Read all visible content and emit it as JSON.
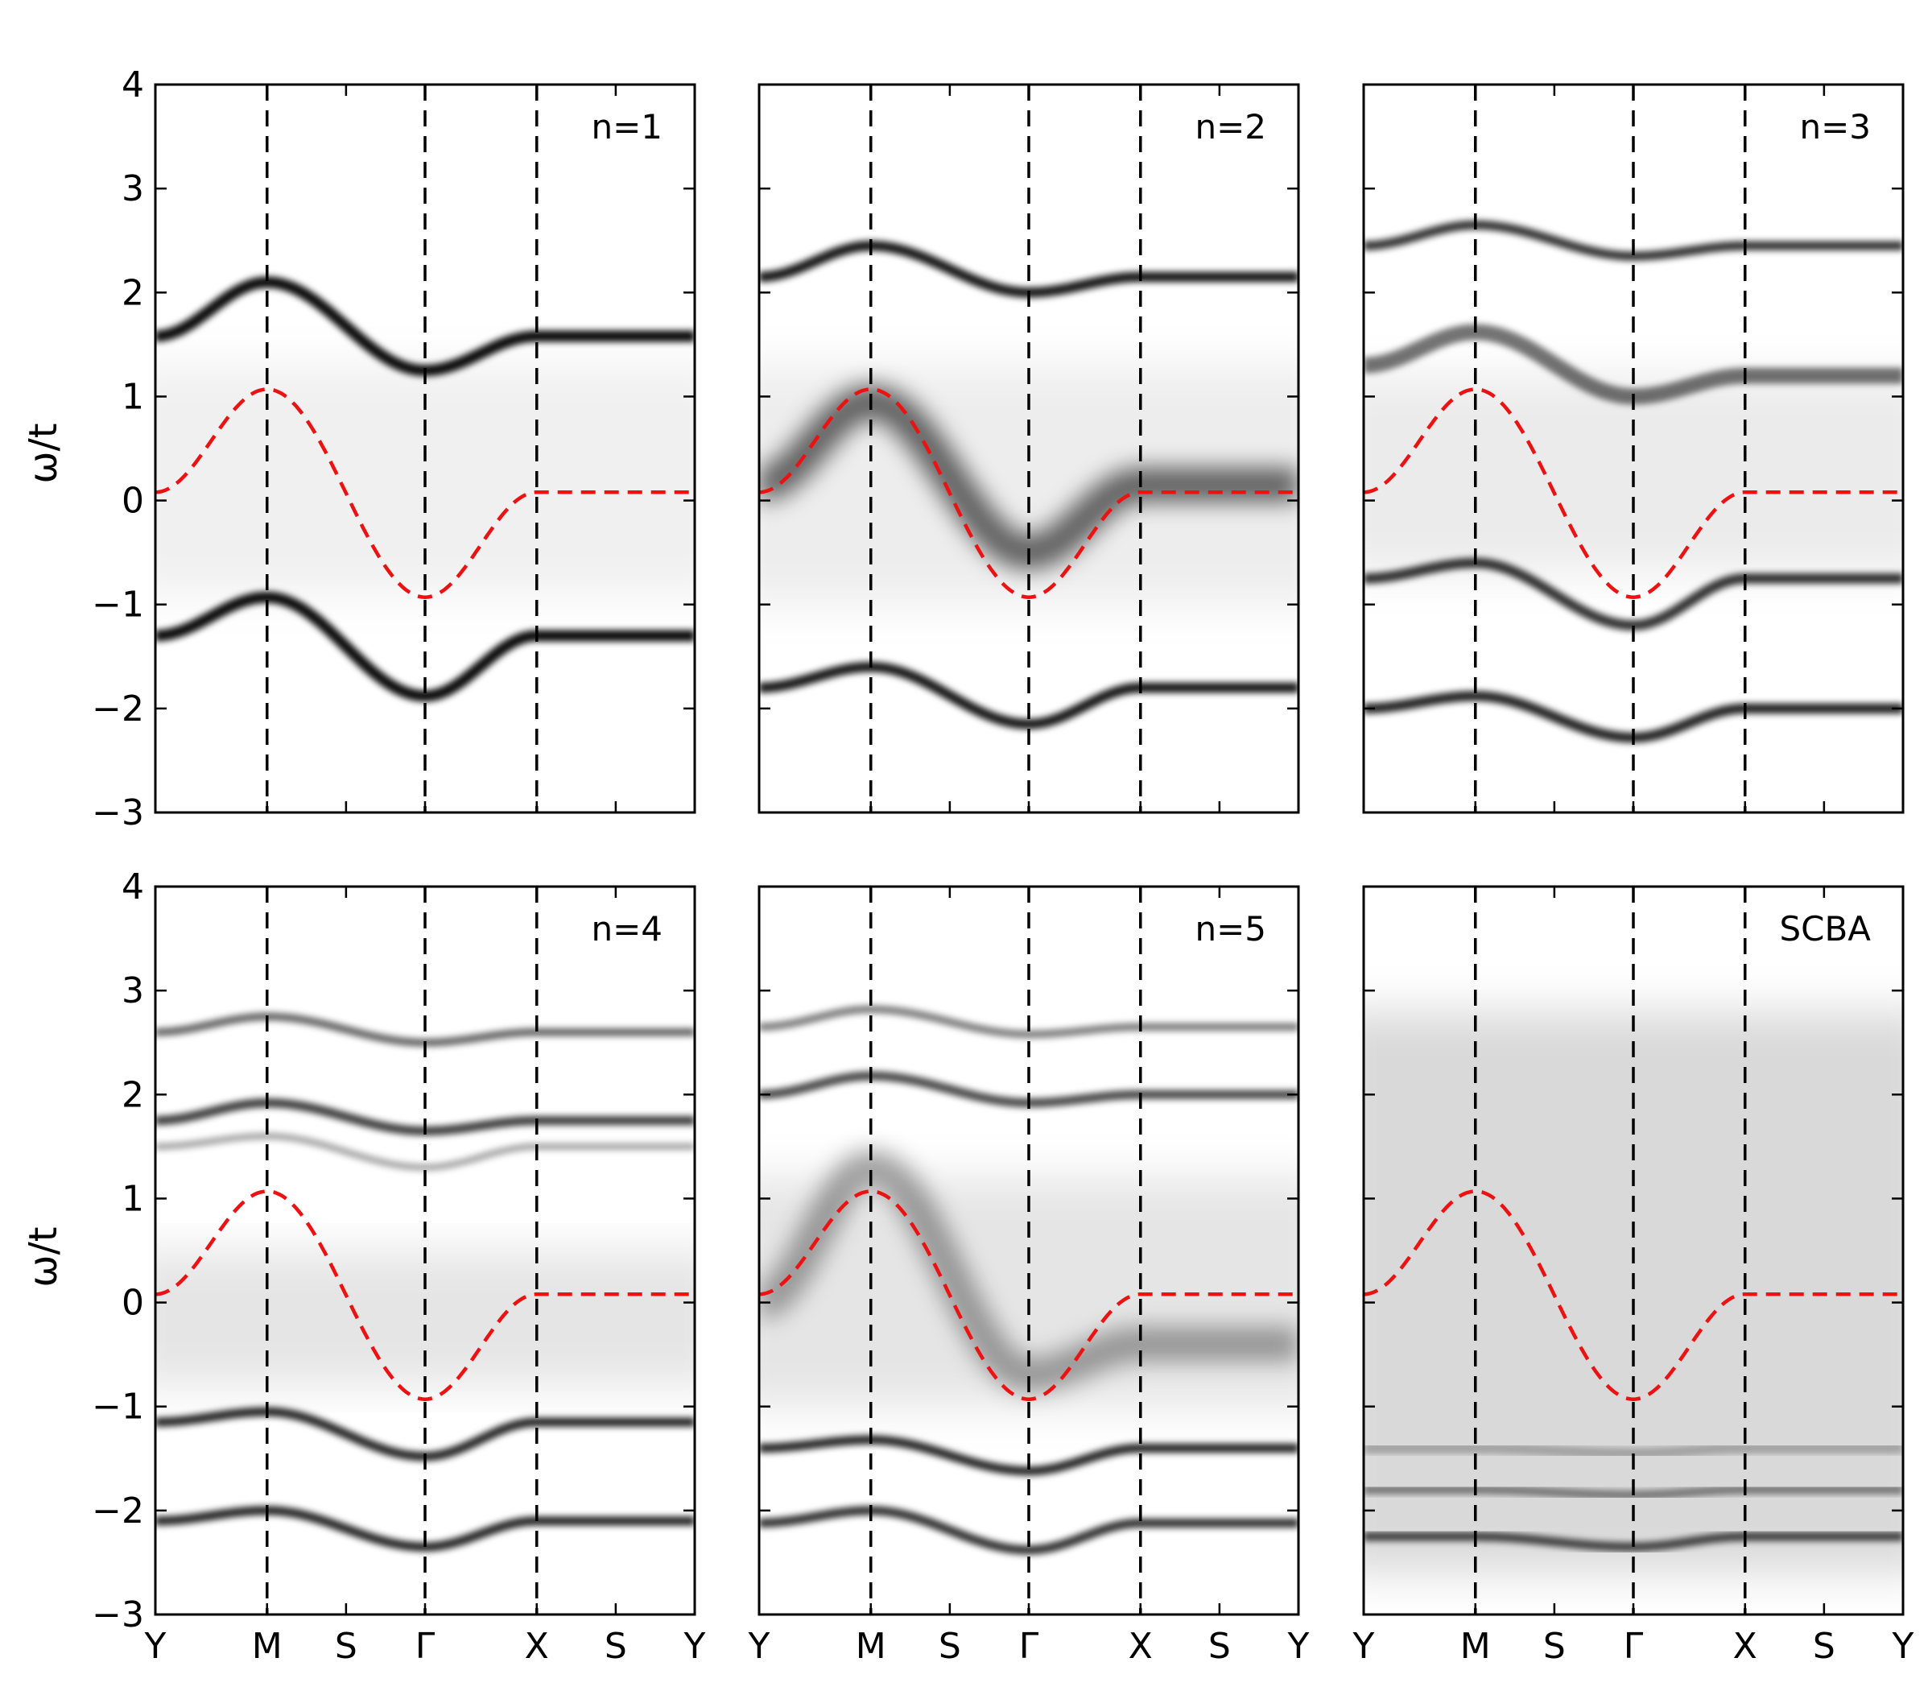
{
  "chart_data": {
    "type": "heatmap",
    "description_kind": "spectral function intensity map (grayscale) with bare dispersion overlay",
    "ylabel": "ω/t",
    "ylim": [
      -3,
      4
    ],
    "yticks": [
      4,
      3,
      2,
      1,
      0,
      -1,
      -2,
      -3
    ],
    "ytick_labels": [
      "4",
      "3",
      "2",
      "1",
      "0",
      "−1",
      "−2",
      "−3"
    ],
    "kpath": {
      "labels": [
        "Y",
        "M",
        "S",
        "Γ",
        "X",
        "S",
        "Y"
      ],
      "positions": [
        0,
        1,
        1.7071,
        2.4142,
        3.4142,
        4.1213,
        4.8284
      ],
      "high_symmetry_lines": [
        1,
        2.4142,
        3.4142
      ]
    },
    "colormap": "white-to-black",
    "overlay": {
      "style": "red dashed",
      "color": "#ee1111",
      "bare_dispersion": [
        [
          0,
          0.08
        ],
        [
          1,
          1.07
        ],
        [
          2.4142,
          -0.93
        ],
        [
          3.4142,
          0.08
        ],
        [
          4.8284,
          0.08
        ]
      ]
    },
    "panels": [
      {
        "label": "n=1",
        "bands": [
          {
            "points": [
              [
                0,
                1.58
              ],
              [
                1,
                2.1
              ],
              [
                2.4142,
                1.25
              ],
              [
                3.4142,
                1.58
              ],
              [
                4.8284,
                1.58
              ]
            ],
            "intensity": 0.95,
            "width": 0.05
          },
          {
            "points": [
              [
                0,
                -1.3
              ],
              [
                1,
                -0.93
              ],
              [
                2.4142,
                -1.88
              ],
              [
                3.4142,
                -1.3
              ],
              [
                4.8284,
                -1.3
              ]
            ],
            "intensity": 0.95,
            "width": 0.05
          }
        ],
        "diffuse": [
          {
            "y": [
              -0.9,
              1.3
            ],
            "intensity": 0.06
          }
        ]
      },
      {
        "label": "n=2",
        "bands": [
          {
            "points": [
              [
                0,
                2.15
              ],
              [
                1,
                2.45
              ],
              [
                2.4142,
                2.0
              ],
              [
                3.4142,
                2.15
              ],
              [
                4.8284,
                2.15
              ]
            ],
            "intensity": 0.9,
            "width": 0.045
          },
          {
            "points": [
              [
                0,
                0.15
              ],
              [
                1,
                0.95
              ],
              [
                2.4142,
                -0.5
              ],
              [
                3.4142,
                0.15
              ],
              [
                4.8284,
                0.15
              ]
            ],
            "intensity": 0.6,
            "width": 0.15
          },
          {
            "points": [
              [
                0,
                -1.8
              ],
              [
                1,
                -1.6
              ],
              [
                2.4142,
                -2.15
              ],
              [
                3.4142,
                -1.8
              ],
              [
                4.8284,
                -1.8
              ]
            ],
            "intensity": 0.9,
            "width": 0.045
          }
        ],
        "diffuse": [
          {
            "y": [
              -1.0,
              1.3
            ],
            "intensity": 0.07
          }
        ]
      },
      {
        "label": "n=3",
        "bands": [
          {
            "points": [
              [
                0,
                2.45
              ],
              [
                1,
                2.65
              ],
              [
                2.4142,
                2.35
              ],
              [
                3.4142,
                2.45
              ],
              [
                4.8284,
                2.45
              ]
            ],
            "intensity": 0.8,
            "width": 0.04
          },
          {
            "points": [
              [
                0,
                1.3
              ],
              [
                1,
                1.62
              ],
              [
                2.4142,
                1.0
              ],
              [
                3.4142,
                1.2
              ],
              [
                4.8284,
                1.2
              ]
            ],
            "intensity": 0.55,
            "width": 0.07
          },
          {
            "points": [
              [
                0,
                -0.75
              ],
              [
                1,
                -0.6
              ],
              [
                2.4142,
                -1.2
              ],
              [
                3.4142,
                -0.75
              ],
              [
                4.8284,
                -0.75
              ]
            ],
            "intensity": 0.8,
            "width": 0.045
          },
          {
            "points": [
              [
                0,
                -2.0
              ],
              [
                1,
                -1.88
              ],
              [
                2.4142,
                -2.28
              ],
              [
                3.4142,
                -2.0
              ],
              [
                4.8284,
                -2.0
              ]
            ],
            "intensity": 0.85,
            "width": 0.045
          }
        ],
        "diffuse": [
          {
            "y": [
              -0.7,
              1.2
            ],
            "intensity": 0.08
          }
        ]
      },
      {
        "label": "n=4",
        "bands": [
          {
            "points": [
              [
                0,
                2.6
              ],
              [
                1,
                2.75
              ],
              [
                2.4142,
                2.5
              ],
              [
                3.4142,
                2.6
              ],
              [
                4.8284,
                2.6
              ]
            ],
            "intensity": 0.6,
            "width": 0.035
          },
          {
            "points": [
              [
                0,
                1.75
              ],
              [
                1,
                1.92
              ],
              [
                2.4142,
                1.65
              ],
              [
                3.4142,
                1.75
              ],
              [
                4.8284,
                1.75
              ]
            ],
            "intensity": 0.75,
            "width": 0.04
          },
          {
            "points": [
              [
                0,
                1.5
              ],
              [
                1,
                1.6
              ],
              [
                2.4142,
                1.3
              ],
              [
                3.4142,
                1.5
              ],
              [
                4.8284,
                1.5
              ]
            ],
            "intensity": 0.35,
            "width": 0.03
          },
          {
            "points": [
              [
                0,
                -1.15
              ],
              [
                1,
                -1.05
              ],
              [
                2.4142,
                -1.48
              ],
              [
                3.4142,
                -1.15
              ],
              [
                4.8284,
                -1.15
              ]
            ],
            "intensity": 0.85,
            "width": 0.04
          },
          {
            "points": [
              [
                0,
                -2.1
              ],
              [
                1,
                -2.0
              ],
              [
                2.4142,
                -2.35
              ],
              [
                3.4142,
                -2.1
              ],
              [
                4.8284,
                -2.1
              ]
            ],
            "intensity": 0.85,
            "width": 0.04
          }
        ],
        "diffuse": [
          {
            "y": [
              -0.8,
              0.5
            ],
            "intensity": 0.1
          }
        ]
      },
      {
        "label": "n=5",
        "bands": [
          {
            "points": [
              [
                0,
                2.65
              ],
              [
                1,
                2.82
              ],
              [
                2.4142,
                2.58
              ],
              [
                3.4142,
                2.65
              ],
              [
                4.8284,
                2.65
              ]
            ],
            "intensity": 0.5,
            "width": 0.035
          },
          {
            "points": [
              [
                0,
                2.0
              ],
              [
                1,
                2.18
              ],
              [
                2.4142,
                1.92
              ],
              [
                3.4142,
                2.0
              ],
              [
                4.8284,
                2.0
              ]
            ],
            "intensity": 0.7,
            "width": 0.04
          },
          {
            "points": [
              [
                0,
                0.0
              ],
              [
                1,
                1.3
              ],
              [
                2.4142,
                -0.7
              ],
              [
                3.4142,
                -0.4
              ],
              [
                4.8284,
                -0.4
              ]
            ],
            "intensity": 0.35,
            "width": 0.15
          },
          {
            "points": [
              [
                0,
                -1.4
              ],
              [
                1,
                -1.32
              ],
              [
                2.4142,
                -1.62
              ],
              [
                3.4142,
                -1.4
              ],
              [
                4.8284,
                -1.4
              ]
            ],
            "intensity": 0.85,
            "width": 0.04
          },
          {
            "points": [
              [
                0,
                -2.12
              ],
              [
                1,
                -2.0
              ],
              [
                2.4142,
                -2.38
              ],
              [
                3.4142,
                -2.12
              ],
              [
                4.8284,
                -2.12
              ]
            ],
            "intensity": 0.8,
            "width": 0.04
          }
        ],
        "diffuse": [
          {
            "y": [
              -1.0,
              1.2
            ],
            "intensity": 0.1
          }
        ]
      },
      {
        "label": "SCBA",
        "bands": [
          {
            "points": [
              [
                0,
                -2.25
              ],
              [
                1,
                -2.25
              ],
              [
                2.4142,
                -2.35
              ],
              [
                3.4142,
                -2.25
              ],
              [
                4.8284,
                -2.25
              ]
            ],
            "intensity": 0.7,
            "width": 0.04
          },
          {
            "points": [
              [
                0,
                -1.8
              ],
              [
                1,
                -1.8
              ],
              [
                2.4142,
                -1.85
              ],
              [
                3.4142,
                -1.8
              ],
              [
                4.8284,
                -1.8
              ]
            ],
            "intensity": 0.45,
            "width": 0.04
          },
          {
            "points": [
              [
                0,
                -1.4
              ],
              [
                1,
                -1.4
              ],
              [
                2.4142,
                -1.45
              ],
              [
                3.4142,
                -1.4
              ],
              [
                4.8284,
                -1.4
              ]
            ],
            "intensity": 0.25,
            "width": 0.05
          }
        ],
        "diffuse": [
          {
            "y": [
              -2.6,
              2.8
            ],
            "intensity": 0.15
          }
        ]
      }
    ]
  }
}
